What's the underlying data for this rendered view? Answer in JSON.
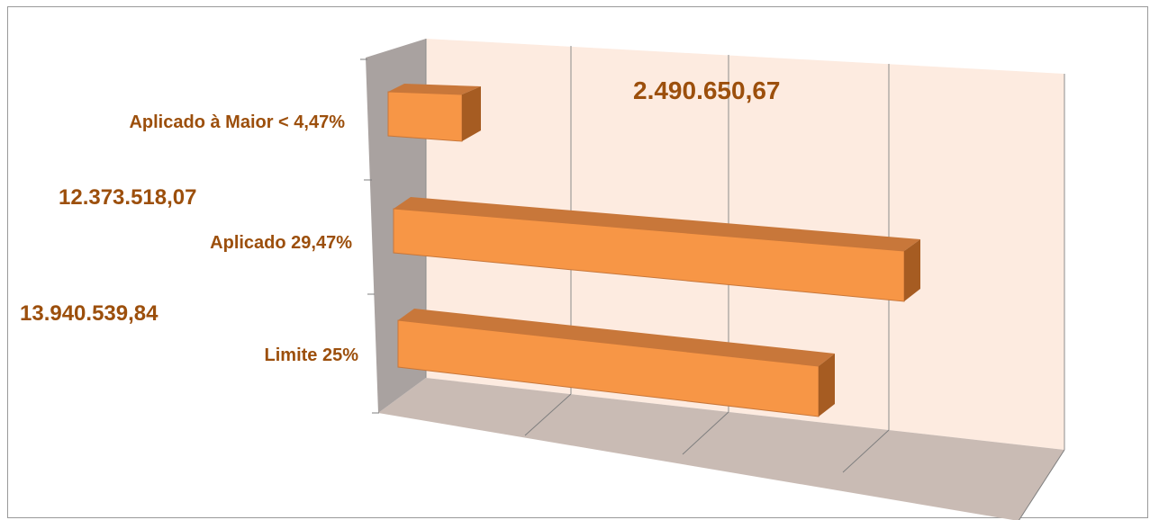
{
  "chart_data": {
    "type": "bar",
    "orientation": "horizontal",
    "style": "3d-clustered",
    "categories": [
      "Aplicado à Maior < 4,47%",
      "Aplicado 29,47%",
      "Limite 25%"
    ],
    "values": [
      2490650.67,
      12373518.07,
      13940539.84
    ],
    "data_labels": [
      "2.490.650,67",
      "12.373.518,07",
      "13.940.539,84"
    ],
    "title": "",
    "xlabel": "",
    "ylabel": "",
    "grid": true,
    "legend": "none"
  },
  "colors": {
    "bar_front": "#f79646",
    "bar_top": "#c8773a",
    "bar_side": "#a65c22",
    "back_wall": "#fdebe0",
    "side_wall": "#a9a2a0",
    "floor": "#c9bbb4",
    "label_text": "#9c4f0c",
    "grid_line": "#8c8c8c"
  }
}
